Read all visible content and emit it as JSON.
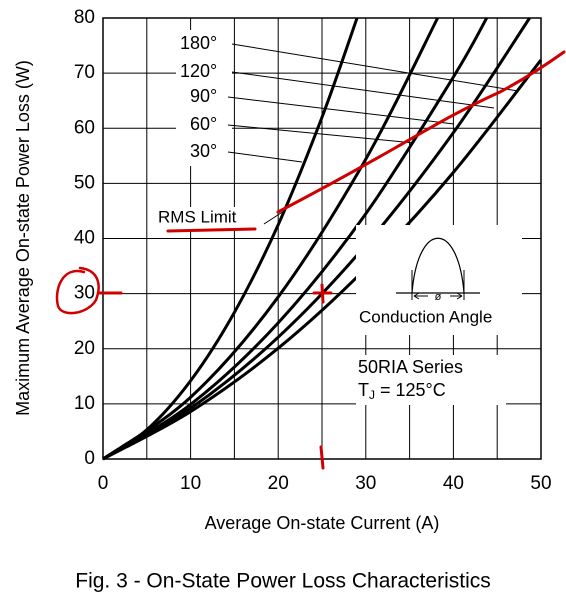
{
  "chart_data": {
    "type": "line",
    "x_label": "Average On-state Current (A)",
    "y_label": "Maximum Average On-state Power Loss (W)",
    "caption": "Fig. 3 - On-State Power Loss Characteristics",
    "xlim": [
      0,
      50
    ],
    "ylim": [
      0,
      80
    ],
    "xticks": [
      0,
      10,
      20,
      30,
      40,
      50
    ],
    "yticks": [
      0,
      10,
      20,
      30,
      40,
      50,
      60,
      70,
      80
    ],
    "grid": true,
    "series": [
      {
        "name": "180°",
        "color": "#000000",
        "x": [
          0,
          10,
          20,
          30,
          40,
          50
        ],
        "values": [
          0,
          8.6,
          20.1,
          34.6,
          52.0,
          72.4
        ]
      },
      {
        "name": "120°",
        "color": "#000000",
        "x": [
          0,
          10,
          20,
          30,
          40,
          48.7
        ],
        "values": [
          0,
          9.2,
          22.1,
          38.8,
          59.2,
          80
        ]
      },
      {
        "name": "90°",
        "color": "#000000",
        "x": [
          0,
          10,
          20,
          30,
          40,
          43.8
        ],
        "values": [
          0,
          9.9,
          24.7,
          44.5,
          69.3,
          80
        ]
      },
      {
        "name": "60°",
        "color": "#000000",
        "x": [
          0,
          10,
          20,
          30,
          38.2
        ],
        "values": [
          0,
          11.2,
          29.4,
          54.4,
          80
        ]
      },
      {
        "name": "30°",
        "color": "#000000",
        "x": [
          0,
          5,
          10,
          15,
          20,
          25,
          29
        ],
        "values": [
          0,
          5.3,
          14.2,
          26.6,
          42.5,
          62.0,
          80
        ]
      }
    ],
    "annotations": {
      "rms": "RMS Limit",
      "angle_symbol": "ø",
      "conduction": "Conduction Angle",
      "device": "50RIA Series",
      "temp_t": "T",
      "temp_sub": "J",
      "temp_rest": " = 125°C"
    }
  }
}
